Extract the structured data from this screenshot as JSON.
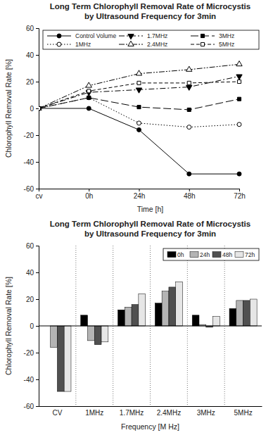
{
  "chart_data": [
    {
      "type": "line",
      "title": [
        "Long Term Chlorophyll Removal Rate of Microcystis",
        "by Ultrasound Frequency for 3min"
      ],
      "x_label": "Time [h]",
      "y_label": "Chlorophyll Removal Rate [%]",
      "categories": [
        "cv",
        "0h",
        "24h",
        "48h",
        "72h"
      ],
      "series": [
        {
          "name": "Control Volume",
          "color": "#000000",
          "marker": "circle",
          "line_style": "solid",
          "values": [
            0,
            0,
            -16,
            -49,
            -49
          ]
        },
        {
          "name": "1MHz",
          "color": "#000000",
          "marker": "circle-open",
          "line_style": "dotted",
          "values": [
            0,
            8,
            -11,
            -14,
            -12
          ]
        },
        {
          "name": "1.7MHz",
          "color": "#000000",
          "marker": "triangle-down",
          "line_style": "dashdot",
          "values": [
            0,
            12,
            14,
            16,
            24
          ]
        },
        {
          "name": "2.4MHz",
          "color": "#000000",
          "marker": "triangle-up-open",
          "line_style": "dashdotdot",
          "values": [
            0,
            17,
            26,
            29,
            33
          ]
        },
        {
          "name": "3MHz",
          "color": "#000000",
          "marker": "square",
          "line_style": "longdash",
          "values": [
            0,
            8,
            1,
            -1,
            7
          ]
        },
        {
          "name": "5MHz",
          "color": "#000000",
          "marker": "square-open",
          "line_style": "dash",
          "values": [
            0,
            13,
            19,
            19,
            20
          ]
        }
      ],
      "ylim": [
        -60,
        60
      ],
      "yticks": [
        -60,
        -40,
        -20,
        0,
        20,
        40,
        60
      ],
      "legend": "top",
      "grid": false
    },
    {
      "type": "bar",
      "title": [
        "Long Term Chlorophyll Removal Rate of Microcystis",
        "by Ultrasound Frequency for 3min"
      ],
      "x_label": "Frequency [M Hz]",
      "y_label": "Chlorophyll Removal Rate [%]",
      "categories": [
        "CV",
        "1MHz",
        "1.7MHz",
        "2.4MHz",
        "3MHz",
        "5MHz"
      ],
      "series": [
        {
          "name": "0h",
          "color": "#000000",
          "values": [
            0,
            8,
            12,
            17,
            8,
            13
          ]
        },
        {
          "name": "24h",
          "color": "#b4b4b4",
          "values": [
            -16,
            -11,
            14,
            26,
            1,
            19
          ]
        },
        {
          "name": "48h",
          "color": "#505050",
          "values": [
            -49,
            -14,
            16,
            29,
            -1,
            19
          ]
        },
        {
          "name": "72h",
          "color": "#e6e6e6",
          "values": [
            -49,
            -12,
            24,
            33,
            7,
            20
          ]
        }
      ],
      "ylim": [
        -60,
        60
      ],
      "yticks": [
        -60,
        -40,
        -20,
        0,
        20,
        40,
        60
      ],
      "legend": "top-right",
      "grid": true
    }
  ]
}
